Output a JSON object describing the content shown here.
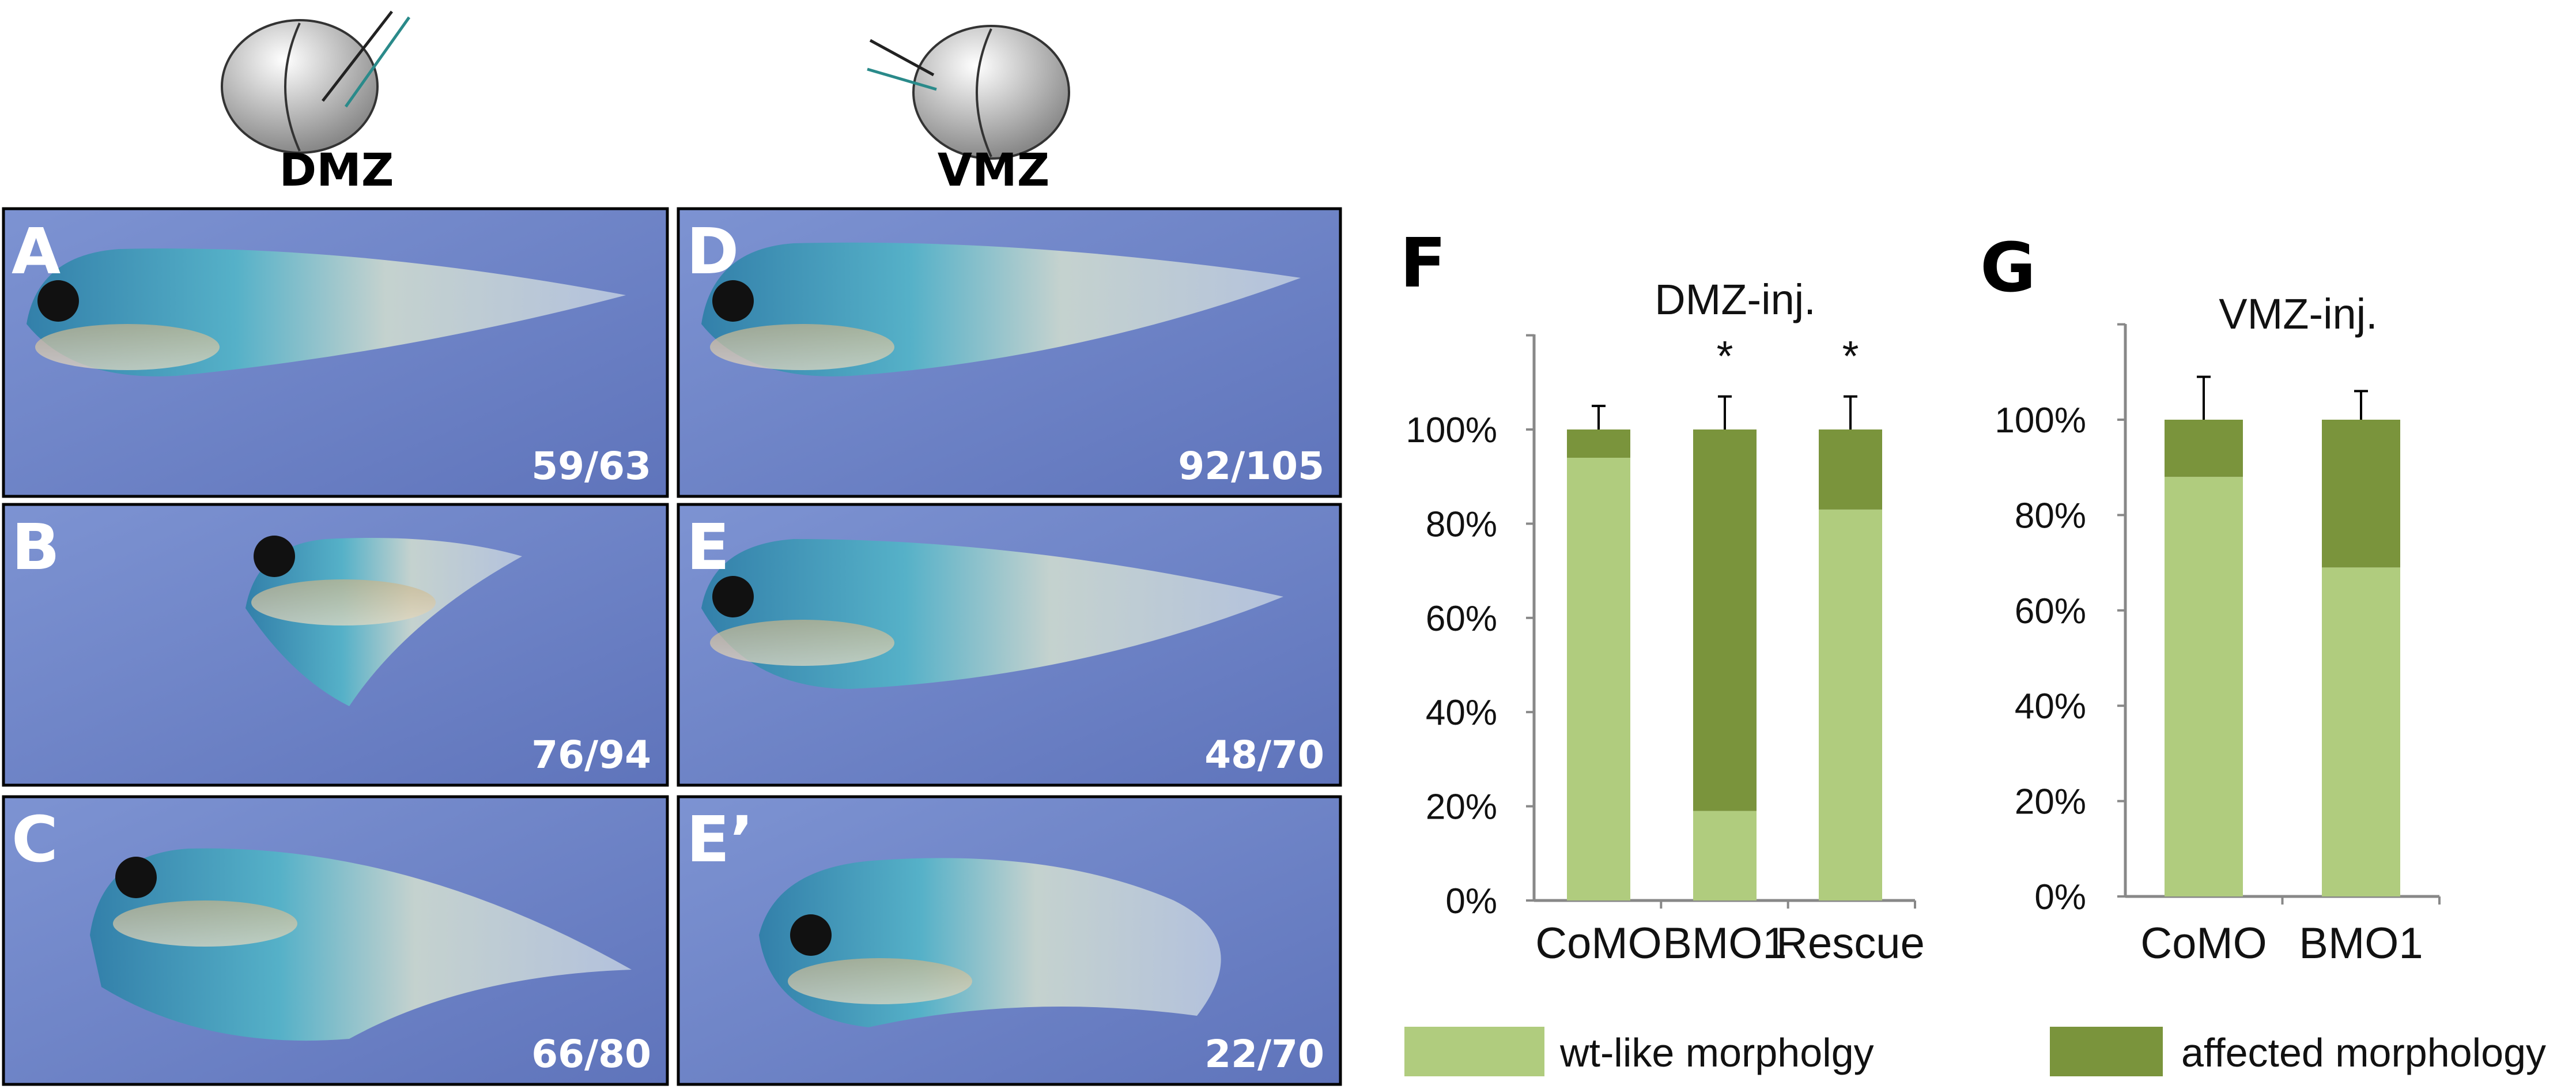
{
  "injection_labels": {
    "left": "DMZ",
    "right": "VMZ"
  },
  "panels": [
    {
      "letter": "A",
      "count": "59/63"
    },
    {
      "letter": "B",
      "count": "76/94"
    },
    {
      "letter": "C",
      "count": "66/80"
    },
    {
      "letter": "D",
      "count": "92/105"
    },
    {
      "letter": "E",
      "count": "48/70"
    },
    {
      "letter": "E’",
      "count": "22/70"
    }
  ],
  "colors": {
    "wt_like": "#b0cc7e",
    "affected": "#7a943c",
    "photo_background": "#6f86c9"
  },
  "legend": [
    {
      "label": "wt-like morpholgy",
      "color": "#b0cc7e"
    },
    {
      "label": "affected morphology",
      "color": "#7a943c"
    }
  ],
  "chart_data": [
    {
      "panel": "F",
      "type": "bar",
      "stacked": true,
      "title": "DMZ-inj.",
      "categories": [
        "CoMO",
        "BMO1",
        "Rescue"
      ],
      "series": [
        {
          "name": "wt-like morpholgy",
          "values": [
            94,
            19,
            83
          ]
        },
        {
          "name": "affected morphology",
          "values": [
            6,
            81,
            17
          ]
        }
      ],
      "error_bars": [
        5,
        7,
        7
      ],
      "significance": [
        "",
        "*",
        "*"
      ],
      "yticks": [
        "0%",
        "20%",
        "40%",
        "60%",
        "80%",
        "100%"
      ],
      "ylim": [
        0,
        120
      ],
      "grid": false
    },
    {
      "panel": "G",
      "type": "bar",
      "stacked": true,
      "title": "VMZ-inj.",
      "categories": [
        "CoMO",
        "BMO1"
      ],
      "series": [
        {
          "name": "wt-like morpholgy",
          "values": [
            88,
            69
          ]
        },
        {
          "name": "affected morphology",
          "values": [
            12,
            31
          ]
        }
      ],
      "error_bars": [
        9,
        6
      ],
      "significance": [
        "",
        ""
      ],
      "yticks": [
        "0%",
        "20%",
        "40%",
        "60%",
        "80%",
        "100%"
      ],
      "ylim": [
        0,
        120
      ],
      "grid": false
    }
  ]
}
